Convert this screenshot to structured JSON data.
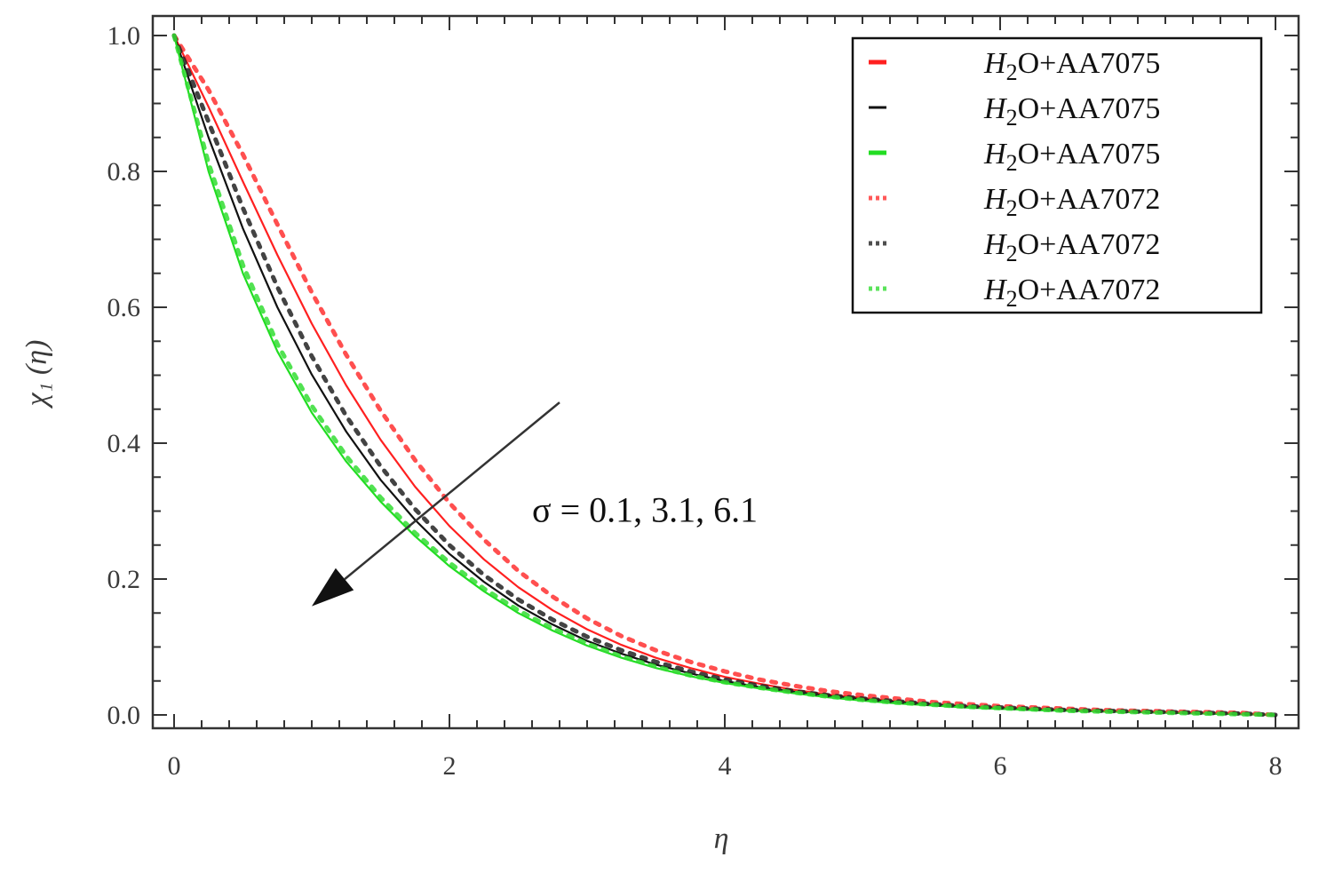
{
  "chart_data": {
    "type": "line",
    "xlabel": "η",
    "ylabel": "χ₁ (η)",
    "xlim": [
      0,
      8
    ],
    "ylim": [
      0,
      1
    ],
    "x_ticks": [
      "0",
      "2",
      "4",
      "6",
      "8"
    ],
    "y_ticks": [
      "0.0",
      "0.2",
      "0.4",
      "0.6",
      "0.8",
      "1.0"
    ],
    "x": [
      0,
      0.25,
      0.5,
      0.75,
      1,
      1.25,
      1.5,
      1.75,
      2,
      2.25,
      2.5,
      2.75,
      3,
      3.25,
      3.5,
      3.75,
      4,
      4.25,
      4.5,
      4.75,
      5,
      5.25,
      5.5,
      5.75,
      6,
      6.25,
      6.5,
      6.75,
      7,
      7.25,
      7.5,
      7.75,
      8
    ],
    "series": [
      {
        "legend": {
          "italic": "H",
          "sub": "2",
          "rest": "O+AA7075"
        },
        "color": "#ff2020",
        "style": "solid",
        "values": [
          1.0,
          0.895,
          0.785,
          0.677,
          0.576,
          0.485,
          0.405,
          0.336,
          0.278,
          0.229,
          0.188,
          0.154,
          0.126,
          0.103,
          0.084,
          0.069,
          0.056,
          0.046,
          0.037,
          0.03,
          0.025,
          0.02,
          0.016,
          0.013,
          0.011,
          0.009,
          0.007,
          0.006,
          0.005,
          0.004,
          0.003,
          0.002,
          0.0
        ]
      },
      {
        "legend": {
          "italic": "H",
          "sub": "2",
          "rest": "O+AA7075"
        },
        "color": "#111111",
        "style": "solid",
        "values": [
          1.0,
          0.85,
          0.716,
          0.6,
          0.501,
          0.417,
          0.346,
          0.287,
          0.237,
          0.196,
          0.161,
          0.133,
          0.109,
          0.09,
          0.074,
          0.061,
          0.05,
          0.041,
          0.034,
          0.028,
          0.023,
          0.019,
          0.015,
          0.012,
          0.01,
          0.008,
          0.007,
          0.005,
          0.004,
          0.003,
          0.002,
          0.001,
          0.0
        ]
      },
      {
        "legend": {
          "italic": "H",
          "sub": "2",
          "rest": "O+AA7075"
        },
        "color": "#22dd22",
        "style": "solid",
        "values": [
          1.0,
          0.8,
          0.65,
          0.535,
          0.445,
          0.373,
          0.314,
          0.263,
          0.219,
          0.182,
          0.15,
          0.124,
          0.102,
          0.084,
          0.069,
          0.057,
          0.047,
          0.039,
          0.032,
          0.026,
          0.021,
          0.017,
          0.014,
          0.011,
          0.009,
          0.007,
          0.006,
          0.005,
          0.004,
          0.003,
          0.002,
          0.001,
          0.0
        ]
      },
      {
        "legend": {
          "italic": "H",
          "sub": "2",
          "rest": "O+AA7072"
        },
        "color": "#ff3030",
        "style": "dotted",
        "values": [
          1.0,
          0.92,
          0.825,
          0.722,
          0.622,
          0.53,
          0.448,
          0.375,
          0.312,
          0.258,
          0.212,
          0.174,
          0.142,
          0.116,
          0.095,
          0.078,
          0.064,
          0.052,
          0.043,
          0.035,
          0.029,
          0.024,
          0.019,
          0.016,
          0.013,
          0.011,
          0.009,
          0.007,
          0.006,
          0.005,
          0.004,
          0.003,
          0.0
        ]
      },
      {
        "legend": {
          "italic": "H",
          "sub": "2",
          "rest": "O+AA7072"
        },
        "color": "#222222",
        "style": "dotted",
        "values": [
          1.0,
          0.873,
          0.746,
          0.63,
          0.528,
          0.44,
          0.366,
          0.303,
          0.25,
          0.206,
          0.17,
          0.14,
          0.115,
          0.095,
          0.078,
          0.064,
          0.052,
          0.043,
          0.035,
          0.029,
          0.024,
          0.02,
          0.016,
          0.013,
          0.011,
          0.009,
          0.007,
          0.006,
          0.005,
          0.004,
          0.003,
          0.002,
          0.0
        ]
      },
      {
        "legend": {
          "italic": "H",
          "sub": "2",
          "rest": "O+AA7072"
        },
        "color": "#33dd33",
        "style": "dotted",
        "values": [
          1.0,
          0.812,
          0.662,
          0.546,
          0.455,
          0.381,
          0.32,
          0.268,
          0.224,
          0.186,
          0.154,
          0.127,
          0.105,
          0.086,
          0.071,
          0.058,
          0.048,
          0.04,
          0.033,
          0.027,
          0.022,
          0.018,
          0.015,
          0.012,
          0.01,
          0.008,
          0.006,
          0.005,
          0.004,
          0.003,
          0.002,
          0.001,
          0.0
        ]
      }
    ],
    "annotation": {
      "text": "σ = 0.1, 3.1, 6.1",
      "arrow_from": [
        2.8,
        0.46
      ],
      "arrow_to": [
        1.0,
        0.16
      ],
      "text_at": [
        2.6,
        0.3
      ]
    },
    "legend_position": "top-right",
    "grid": false
  }
}
